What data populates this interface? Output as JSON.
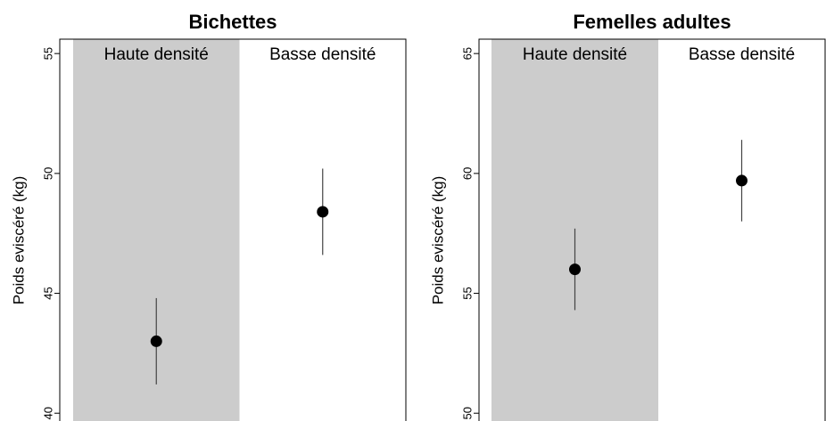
{
  "chart_data": [
    {
      "type": "errorbar",
      "title": "Bichettes",
      "ylabel": "Poids eviscéré (kg)",
      "categories": [
        "Haute densité",
        "Basse densité"
      ],
      "band_colors": [
        "#cccccc",
        "#ffffff"
      ],
      "values": [
        43.0,
        48.4
      ],
      "errors": [
        1.8,
        1.8
      ],
      "color": "#000000",
      "ylim": [
        39.6,
        55.6
      ],
      "yticks": [
        40,
        45,
        50,
        55
      ]
    },
    {
      "type": "errorbar",
      "title": "Femelles adultes",
      "ylabel": "Poids eviscéré (kg)",
      "categories": [
        "Haute densité",
        "Basse densité"
      ],
      "band_colors": [
        "#cccccc",
        "#ffffff"
      ],
      "values": [
        56.0,
        59.7
      ],
      "errors": [
        1.7,
        1.7
      ],
      "color": "#000000",
      "ylim": [
        49.6,
        65.6
      ],
      "yticks": [
        50,
        55,
        60,
        65
      ]
    }
  ]
}
